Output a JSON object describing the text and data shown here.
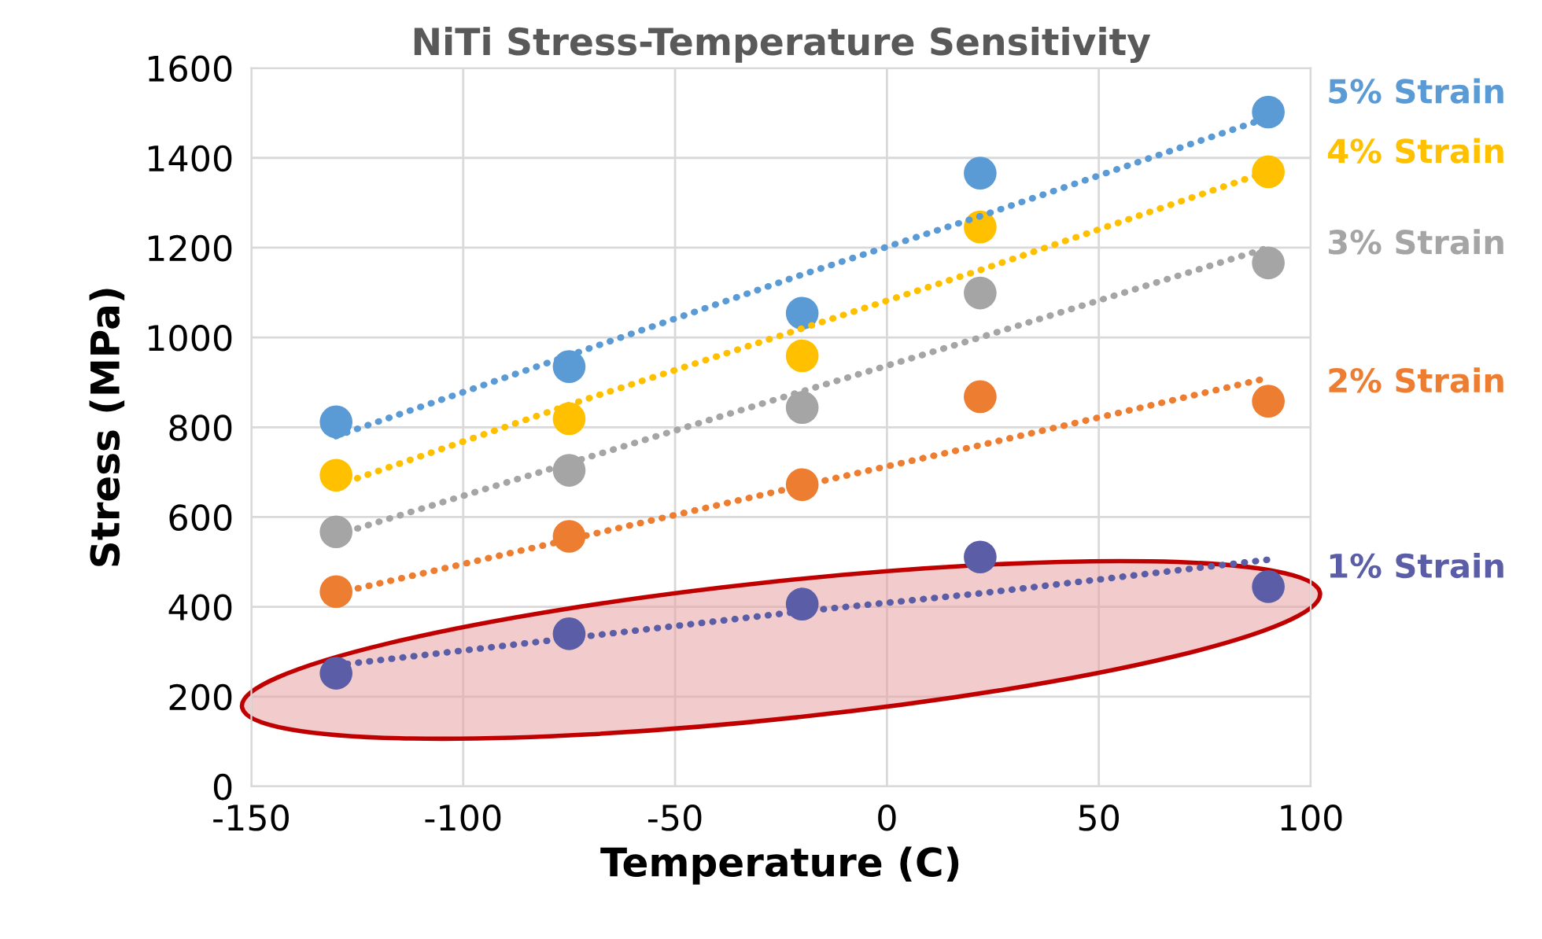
{
  "chart_data": {
    "type": "scatter",
    "title": "NiTi Stress-Temperature Sensitivity",
    "xlabel": "Temperature (C)",
    "ylabel": "Stress (MPa)",
    "x": [
      -130,
      -75,
      -20,
      22,
      90
    ],
    "xlim": [
      -150,
      100
    ],
    "xticks": [
      -150,
      -100,
      -50,
      0,
      50,
      100
    ],
    "ylim": [
      0,
      1600
    ],
    "yticks": [
      0,
      200,
      400,
      600,
      800,
      1000,
      1200,
      1400,
      1600
    ],
    "grid": true,
    "legend": false,
    "marker": "circle",
    "series": [
      {
        "name": "5% Strain",
        "color": "#5b9bd5",
        "values": [
          812,
          935,
          1054,
          1366,
          1502
        ]
      },
      {
        "name": "4% Strain",
        "color": "#ffc000",
        "values": [
          693,
          819,
          959,
          1246,
          1369
        ]
      },
      {
        "name": "3% Strain",
        "color": "#a5a5a5",
        "values": [
          567,
          704,
          844,
          1099,
          1166
        ]
      },
      {
        "name": "2% Strain",
        "color": "#ed7d31",
        "values": [
          434,
          557,
          672,
          868,
          858
        ]
      },
      {
        "name": "1% Strain",
        "color": "#5b5ea6",
        "values": [
          252,
          340,
          406,
          511,
          445
        ]
      },
      {
        "type": "line",
        "line_style": "dotted",
        "marker": "none",
        "color": "#5b9bd5",
        "values": [
          780,
          960,
          1140,
          1270,
          1490
        ]
      },
      {
        "type": "line",
        "line_style": "dotted",
        "marker": "none",
        "color": "#ffc000",
        "values": [
          670,
          850,
          1020,
          1150,
          1370
        ]
      },
      {
        "type": "line",
        "line_style": "dotted",
        "marker": "none",
        "color": "#a5a5a5",
        "values": [
          560,
          720,
          880,
          1000,
          1200
        ]
      },
      {
        "type": "line",
        "line_style": "dotted",
        "marker": "none",
        "color": "#ed7d31",
        "values": [
          430,
          550,
          670,
          760,
          910
        ]
      },
      {
        "type": "line",
        "line_style": "dotted",
        "marker": "none",
        "color": "#5b5ea6",
        "values": [
          270,
          330,
          390,
          430,
          505
        ]
      }
    ]
  }
}
